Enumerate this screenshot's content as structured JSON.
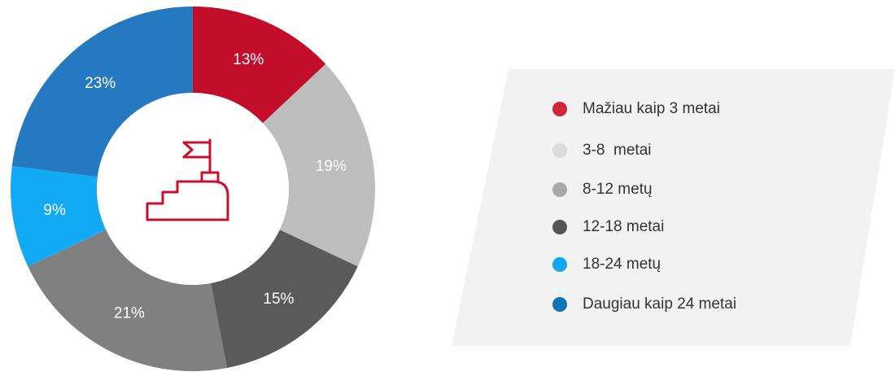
{
  "chart_data": {
    "type": "pie",
    "donut": true,
    "values": [
      13,
      19,
      15,
      21,
      9,
      23
    ],
    "value_labels": [
      "13%",
      "19%",
      "15%",
      "21%",
      "9%",
      "23%"
    ],
    "colors": [
      "#c20d2b",
      "#bdbdbd",
      "#5a5a5a",
      "#808080",
      "#12a9f5",
      "#2479c1"
    ],
    "legend": [
      {
        "name": "Mažiau kaip 3 metai",
        "color": "#d0263a"
      },
      {
        "name": "3-8  metai",
        "color": "#dcdcdc"
      },
      {
        "name": "8-12 metų",
        "color": "#a9a9a9"
      },
      {
        "name": "12-18 metai",
        "color": "#555555"
      },
      {
        "name": "18-24 metų",
        "color": "#11a8ef"
      },
      {
        "name": "Daugiau kaip 24 metai",
        "color": "#0f73b8"
      }
    ]
  }
}
